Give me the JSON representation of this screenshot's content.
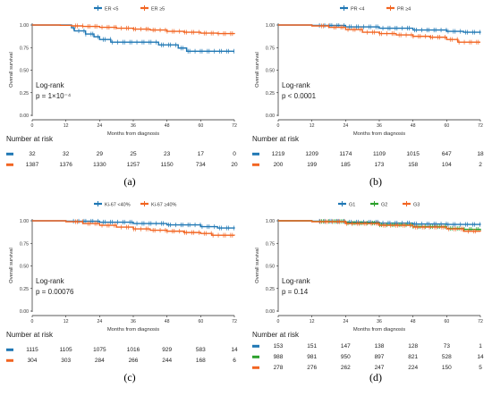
{
  "chart_data": [
    {
      "type": "line",
      "panel_label": "(a)",
      "ylabel": "Overall survival",
      "xlabel": "Months from diagnosis",
      "x_ticks": [
        0,
        12,
        24,
        36,
        48,
        60,
        72
      ],
      "y_ticks": [
        "0.00",
        "0.25",
        "0.50",
        "0.75",
        "1.00"
      ],
      "xlim": [
        0,
        72
      ],
      "ylim": [
        0,
        1
      ],
      "legend_position": "top",
      "annotation_lines": [
        "Log-rank",
        "p = 1×10⁻⁴"
      ],
      "risk_title": "Number at risk",
      "risk_times": [
        0,
        12,
        24,
        36,
        48,
        60,
        72
      ],
      "series": [
        {
          "name": "ER <5",
          "color": "#1f77b4",
          "steps": [
            [
              0,
              1.0
            ],
            [
              14,
              0.97
            ],
            [
              15,
              0.935
            ],
            [
              19,
              0.9
            ],
            [
              22,
              0.87
            ],
            [
              24,
              0.84
            ],
            [
              28,
              0.81
            ],
            [
              45,
              0.78
            ],
            [
              52,
              0.745
            ],
            [
              55,
              0.71
            ],
            [
              72,
              0.71
            ]
          ],
          "at_risk": [
            32,
            32,
            29,
            25,
            23,
            17,
            0
          ]
        },
        {
          "name": "ER ≥5",
          "color": "#f26522",
          "steps": [
            [
              0,
              1.0
            ],
            [
              10,
              0.997
            ],
            [
              14,
              0.99
            ],
            [
              18,
              0.985
            ],
            [
              24,
              0.975
            ],
            [
              30,
              0.965
            ],
            [
              36,
              0.955
            ],
            [
              42,
              0.945
            ],
            [
              48,
              0.93
            ],
            [
              54,
              0.92
            ],
            [
              60,
              0.91
            ],
            [
              66,
              0.905
            ],
            [
              72,
              0.9
            ]
          ],
          "at_risk": [
            1387,
            1376,
            1330,
            1257,
            1150,
            734,
            20
          ]
        }
      ]
    },
    {
      "type": "line",
      "panel_label": "(b)",
      "ylabel": "Overall survival",
      "xlabel": "Months from diagnosis",
      "x_ticks": [
        0,
        12,
        24,
        36,
        48,
        60,
        72
      ],
      "y_ticks": [
        "0.00",
        "0.25",
        "0.50",
        "0.75",
        "1.00"
      ],
      "xlim": [
        0,
        72
      ],
      "ylim": [
        0,
        1
      ],
      "legend_position": "top",
      "annotation_lines": [
        "Log-rank",
        "p < 0.0001"
      ],
      "risk_title": "Number at risk",
      "risk_times": [
        0,
        12,
        24,
        36,
        48,
        60,
        72
      ],
      "series": [
        {
          "name": "PR <4",
          "color": "#1f77b4",
          "steps": [
            [
              0,
              1.0
            ],
            [
              12,
              0.995
            ],
            [
              24,
              0.98
            ],
            [
              36,
              0.965
            ],
            [
              48,
              0.945
            ],
            [
              60,
              0.93
            ],
            [
              66,
              0.92
            ],
            [
              72,
              0.915
            ]
          ],
          "at_risk": [
            1219,
            1209,
            1174,
            1109,
            1015,
            647,
            18
          ]
        },
        {
          "name": "PR ≥4",
          "color": "#f26522",
          "steps": [
            [
              0,
              1.0
            ],
            [
              12,
              0.99
            ],
            [
              18,
              0.975
            ],
            [
              24,
              0.95
            ],
            [
              30,
              0.92
            ],
            [
              36,
              0.905
            ],
            [
              42,
              0.89
            ],
            [
              48,
              0.875
            ],
            [
              54,
              0.865
            ],
            [
              60,
              0.84
            ],
            [
              64,
              0.81
            ],
            [
              72,
              0.81
            ]
          ],
          "at_risk": [
            200,
            199,
            185,
            173,
            158,
            104,
            2
          ]
        }
      ]
    },
    {
      "type": "line",
      "panel_label": "(c)",
      "ylabel": "Overall survival",
      "xlabel": "Months from diagnosis",
      "x_ticks": [
        0,
        12,
        24,
        36,
        48,
        60,
        72
      ],
      "y_ticks": [
        "0.00",
        "0.25",
        "0.50",
        "0.75",
        "1.00"
      ],
      "xlim": [
        0,
        72
      ],
      "ylim": [
        0,
        1
      ],
      "legend_position": "top",
      "annotation_lines": [
        "Log-rank",
        "p = 0.00076"
      ],
      "risk_title": "Number at risk",
      "risk_times": [
        0,
        12,
        24,
        36,
        48,
        60,
        72
      ],
      "series": [
        {
          "name": "Ki-67 <40%",
          "color": "#1f77b4",
          "steps": [
            [
              0,
              1.0
            ],
            [
              12,
              0.995
            ],
            [
              24,
              0.985
            ],
            [
              36,
              0.97
            ],
            [
              48,
              0.955
            ],
            [
              60,
              0.935
            ],
            [
              66,
              0.92
            ],
            [
              72,
              0.915
            ]
          ],
          "at_risk": [
            1115,
            1105,
            1075,
            1016,
            929,
            583,
            14
          ]
        },
        {
          "name": "Ki-67 ≥40%",
          "color": "#f26522",
          "steps": [
            [
              0,
              1.0
            ],
            [
              12,
              0.99
            ],
            [
              18,
              0.97
            ],
            [
              24,
              0.95
            ],
            [
              30,
              0.93
            ],
            [
              36,
              0.91
            ],
            [
              42,
              0.895
            ],
            [
              48,
              0.885
            ],
            [
              54,
              0.87
            ],
            [
              60,
              0.86
            ],
            [
              64,
              0.84
            ],
            [
              72,
              0.835
            ]
          ],
          "at_risk": [
            304,
            303,
            284,
            266,
            244,
            168,
            6
          ]
        }
      ]
    },
    {
      "type": "line",
      "panel_label": "(d)",
      "ylabel": "Overall survival",
      "xlabel": "Months from diagnosis",
      "x_ticks": [
        0,
        12,
        24,
        36,
        48,
        60,
        72
      ],
      "y_ticks": [
        "0.00",
        "0.25",
        "0.50",
        "0.75",
        "1.00"
      ],
      "xlim": [
        0,
        72
      ],
      "ylim": [
        0,
        1
      ],
      "legend_position": "top",
      "annotation_lines": [
        "Log-rank",
        "p = 0.14"
      ],
      "risk_title": "Number at risk",
      "risk_times": [
        0,
        12,
        24,
        36,
        48,
        60,
        72
      ],
      "series": [
        {
          "name": "G1",
          "color": "#1f77b4",
          "steps": [
            [
              0,
              1.0
            ],
            [
              12,
              0.995
            ],
            [
              24,
              0.985
            ],
            [
              36,
              0.975
            ],
            [
              48,
              0.965
            ],
            [
              60,
              0.96
            ],
            [
              72,
              0.955
            ]
          ],
          "at_risk": [
            153,
            151,
            147,
            138,
            128,
            73,
            1
          ]
        },
        {
          "name": "G2",
          "color": "#2ca02c",
          "steps": [
            [
              0,
              1.0
            ],
            [
              12,
              0.993
            ],
            [
              24,
              0.975
            ],
            [
              36,
              0.955
            ],
            [
              48,
              0.935
            ],
            [
              60,
              0.915
            ],
            [
              66,
              0.905
            ],
            [
              72,
              0.895
            ]
          ],
          "at_risk": [
            988,
            981,
            950,
            897,
            821,
            528,
            14
          ]
        },
        {
          "name": "G3",
          "color": "#f26522",
          "steps": [
            [
              0,
              1.0
            ],
            [
              12,
              0.99
            ],
            [
              24,
              0.97
            ],
            [
              36,
              0.95
            ],
            [
              48,
              0.93
            ],
            [
              60,
              0.91
            ],
            [
              66,
              0.885
            ],
            [
              72,
              0.88
            ]
          ],
          "at_risk": [
            278,
            276,
            262,
            247,
            224,
            150,
            5
          ]
        }
      ]
    }
  ]
}
